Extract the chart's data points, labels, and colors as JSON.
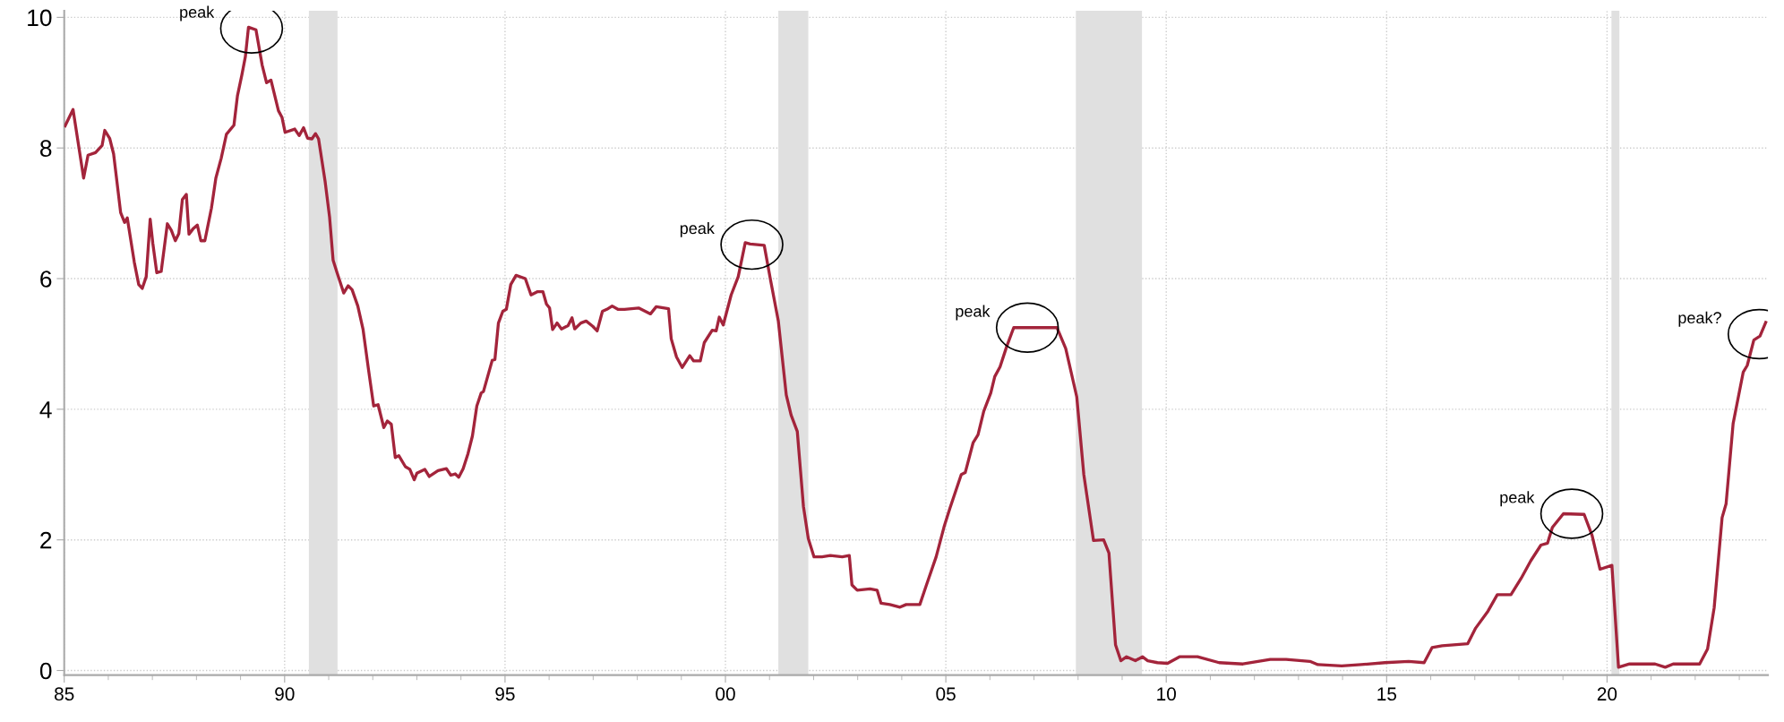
{
  "chart_data": {
    "type": "line",
    "series": [
      {
        "color": "#a3243b",
        "x": [
          1985.02,
          1985.2,
          1985.44,
          1985.54,
          1985.71,
          1985.86,
          1985.92,
          1986.03,
          1986.12,
          1986.28,
          1986.37,
          1986.43,
          1986.59,
          1986.69,
          1986.77,
          1986.86,
          1986.95,
          1987.01,
          1987.1,
          1987.2,
          1987.34,
          1987.43,
          1987.52,
          1987.6,
          1987.68,
          1987.77,
          1987.83,
          1987.92,
          1988.02,
          1988.1,
          1988.19,
          1988.34,
          1988.44,
          1988.56,
          1988.68,
          1988.85,
          1988.93,
          1989.03,
          1989.11,
          1989.18,
          1989.35,
          1989.49,
          1989.59,
          1989.69,
          1989.86,
          1989.94,
          1990.01,
          1990.23,
          1990.33,
          1990.43,
          1990.52,
          1990.62,
          1990.7,
          1990.77,
          1990.92,
          1991.02,
          1991.1,
          1991.19,
          1991.34,
          1991.44,
          1991.53,
          1991.66,
          1991.78,
          1991.9,
          1992.02,
          1992.12,
          1992.25,
          1992.33,
          1992.42,
          1992.51,
          1992.59,
          1992.74,
          1992.84,
          1992.94,
          1993.0,
          1993.18,
          1993.28,
          1993.48,
          1993.67,
          1993.77,
          1993.87,
          1993.95,
          1994.05,
          1994.16,
          1994.26,
          1994.36,
          1994.46,
          1994.51,
          1994.71,
          1994.77,
          1994.85,
          1994.95,
          1995.03,
          1995.13,
          1995.25,
          1995.46,
          1995.59,
          1995.74,
          1995.86,
          1995.94,
          1996.01,
          1996.08,
          1996.18,
          1996.28,
          1996.43,
          1996.52,
          1996.58,
          1996.72,
          1996.84,
          1996.99,
          1997.09,
          1997.21,
          1997.31,
          1997.43,
          1997.56,
          1997.71,
          1998.03,
          1998.3,
          1998.43,
          1998.71,
          1998.77,
          1998.89,
          1999.02,
          1999.19,
          1999.28,
          1999.43,
          1999.52,
          1999.7,
          1999.79,
          1999.86,
          1999.95,
          2000.13,
          2000.29,
          2000.45,
          2000.56,
          2000.88,
          2001.02,
          2001.2,
          2001.38,
          2001.49,
          2001.63,
          2001.77,
          2001.88,
          2002.01,
          2002.19,
          2002.38,
          2002.65,
          2002.81,
          2002.87,
          2002.99,
          2003.28,
          2003.44,
          2003.53,
          2003.73,
          2003.96,
          2004.1,
          2004.41,
          2004.55,
          2004.78,
          2004.96,
          2005.09,
          2005.35,
          2005.44,
          2005.62,
          2005.73,
          2005.86,
          2006.02,
          2006.11,
          2006.23,
          2006.38,
          2006.54,
          2007.18,
          2007.52,
          2007.72,
          2007.97,
          2008.13,
          2008.35,
          2008.58,
          2008.7,
          2008.85,
          2008.97,
          2009.1,
          2009.3,
          2009.46,
          2009.58,
          2009.8,
          2010.03,
          2010.3,
          2010.71,
          2011.2,
          2011.74,
          2012.36,
          2012.72,
          2013.26,
          2013.44,
          2013.98,
          2014.42,
          2014.96,
          2015.5,
          2015.85,
          2016.03,
          2016.26,
          2016.84,
          2017.02,
          2017.3,
          2017.51,
          2017.82,
          2018.05,
          2018.27,
          2018.5,
          2018.65,
          2018.76,
          2019.01,
          2019.48,
          2019.66,
          2019.84,
          2020.11,
          2020.26,
          2020.51,
          2021.09,
          2021.32,
          2021.5,
          2022.1,
          2022.28,
          2022.43,
          2022.61,
          2022.7,
          2022.86,
          2023.09,
          2023.18,
          2023.33,
          2023.47,
          2023.6
        ],
        "values": [
          8.34,
          8.59,
          7.54,
          7.89,
          7.93,
          8.04,
          8.27,
          8.15,
          7.91,
          7.01,
          6.86,
          6.93,
          6.25,
          5.91,
          5.85,
          6.03,
          6.91,
          6.54,
          6.09,
          6.11,
          6.84,
          6.74,
          6.58,
          6.69,
          7.21,
          7.29,
          6.68,
          6.76,
          6.82,
          6.58,
          6.58,
          7.08,
          7.54,
          7.84,
          8.21,
          8.35,
          8.8,
          9.12,
          9.4,
          9.85,
          9.81,
          9.27,
          9.0,
          9.04,
          8.57,
          8.47,
          8.24,
          8.29,
          8.19,
          8.31,
          8.15,
          8.14,
          8.22,
          8.14,
          7.48,
          6.94,
          6.28,
          6.09,
          5.78,
          5.89,
          5.83,
          5.58,
          5.22,
          4.62,
          4.05,
          4.07,
          3.72,
          3.82,
          3.77,
          3.26,
          3.29,
          3.12,
          3.08,
          2.92,
          3.02,
          3.08,
          2.97,
          3.06,
          3.09,
          2.99,
          3.01,
          2.96,
          3.09,
          3.32,
          3.59,
          4.05,
          4.25,
          4.27,
          4.75,
          4.76,
          5.32,
          5.5,
          5.53,
          5.91,
          6.05,
          6.0,
          5.75,
          5.8,
          5.8,
          5.61,
          5.55,
          5.22,
          5.32,
          5.23,
          5.28,
          5.4,
          5.23,
          5.32,
          5.35,
          5.27,
          5.2,
          5.5,
          5.53,
          5.58,
          5.53,
          5.53,
          5.55,
          5.46,
          5.57,
          5.54,
          5.08,
          4.8,
          4.64,
          4.82,
          4.74,
          4.74,
          5.02,
          5.21,
          5.2,
          5.41,
          5.29,
          5.75,
          6.03,
          6.55,
          6.53,
          6.51,
          5.99,
          5.35,
          4.22,
          3.91,
          3.66,
          2.51,
          2.02,
          1.74,
          1.74,
          1.76,
          1.74,
          1.76,
          1.31,
          1.23,
          1.25,
          1.23,
          1.03,
          1.01,
          0.97,
          1.01,
          1.01,
          1.29,
          1.74,
          2.2,
          2.48,
          3.0,
          3.03,
          3.49,
          3.61,
          3.97,
          4.25,
          4.5,
          4.65,
          4.96,
          5.25,
          5.25,
          5.25,
          4.93,
          4.19,
          3.0,
          1.99,
          2.0,
          1.8,
          0.39,
          0.15,
          0.21,
          0.15,
          0.21,
          0.15,
          0.12,
          0.11,
          0.21,
          0.21,
          0.12,
          0.1,
          0.17,
          0.17,
          0.14,
          0.09,
          0.07,
          0.09,
          0.12,
          0.14,
          0.12,
          0.35,
          0.38,
          0.41,
          0.65,
          0.91,
          1.16,
          1.16,
          1.41,
          1.68,
          1.92,
          1.95,
          2.19,
          2.4,
          2.39,
          2.07,
          1.55,
          1.61,
          0.05,
          0.1,
          0.1,
          0.05,
          0.1,
          0.1,
          0.33,
          0.96,
          2.34,
          2.55,
          3.78,
          4.57,
          4.67,
          5.06,
          5.12,
          5.33
        ]
      }
    ],
    "xlim": [
      1985,
      2023.65
    ],
    "xticks": [
      {
        "value": 1985,
        "label": "85"
      },
      {
        "value": 1986,
        "label": null
      },
      {
        "value": 1987,
        "label": null
      },
      {
        "value": 1988,
        "label": null
      },
      {
        "value": 1989,
        "label": null
      },
      {
        "value": 1990,
        "label": "90"
      },
      {
        "value": 1991,
        "label": null
      },
      {
        "value": 1992,
        "label": null
      },
      {
        "value": 1993,
        "label": null
      },
      {
        "value": 1994,
        "label": null
      },
      {
        "value": 1995,
        "label": "95"
      },
      {
        "value": 1996,
        "label": null
      },
      {
        "value": 1997,
        "label": null
      },
      {
        "value": 1998,
        "label": null
      },
      {
        "value": 1999,
        "label": null
      },
      {
        "value": 2000,
        "label": "00"
      },
      {
        "value": 2001,
        "label": null
      },
      {
        "value": 2002,
        "label": null
      },
      {
        "value": 2003,
        "label": null
      },
      {
        "value": 2004,
        "label": null
      },
      {
        "value": 2005,
        "label": "05"
      },
      {
        "value": 2006,
        "label": null
      },
      {
        "value": 2007,
        "label": null
      },
      {
        "value": 2008,
        "label": null
      },
      {
        "value": 2009,
        "label": null
      },
      {
        "value": 2010,
        "label": "10"
      },
      {
        "value": 2011,
        "label": null
      },
      {
        "value": 2012,
        "label": null
      },
      {
        "value": 2013,
        "label": null
      },
      {
        "value": 2014,
        "label": null
      },
      {
        "value": 2015,
        "label": "15"
      },
      {
        "value": 2016,
        "label": null
      },
      {
        "value": 2017,
        "label": null
      },
      {
        "value": 2018,
        "label": null
      },
      {
        "value": 2019,
        "label": null
      },
      {
        "value": 2020,
        "label": "20"
      },
      {
        "value": 2021,
        "label": null
      },
      {
        "value": 2022,
        "label": null
      },
      {
        "value": 2023,
        "label": null
      }
    ],
    "ylim": [
      -0.07,
      10.1
    ],
    "yticks": [
      0,
      2,
      4,
      6,
      8,
      10
    ],
    "grid": true,
    "line_style": "solid",
    "bands": [
      {
        "axis": "x",
        "from": 1990.55,
        "to": 1991.2,
        "color": "#e0e0e0"
      },
      {
        "axis": "x",
        "from": 2001.2,
        "to": 2001.88,
        "color": "#e0e0e0"
      },
      {
        "axis": "x",
        "from": 2007.95,
        "to": 2009.45,
        "color": "#e0e0e0"
      },
      {
        "axis": "x",
        "from": 2020.1,
        "to": 2020.28,
        "color": "#e0e0e0"
      }
    ],
    "annotations": [
      {
        "text": "peak",
        "x": 1989.25,
        "y": 9.83
      },
      {
        "text": "peak",
        "x": 2000.6,
        "y": 6.52
      },
      {
        "text": "peak",
        "x": 2006.85,
        "y": 5.25
      },
      {
        "text": "peak",
        "x": 2019.2,
        "y": 2.4
      },
      {
        "text": "peak?",
        "x": 2023.45,
        "y": 5.15
      }
    ]
  }
}
